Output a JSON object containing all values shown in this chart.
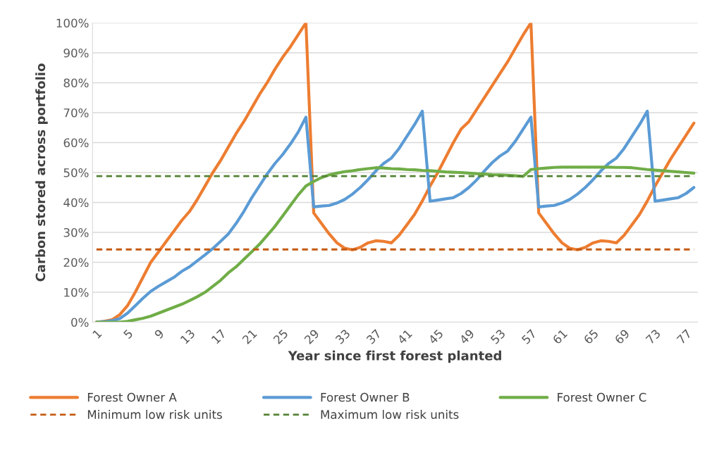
{
  "chart_data": {
    "type": "line",
    "xlabel": "Year since first forest planted",
    "ylabel": "Carbon stored across portfolio",
    "categories": [
      "1",
      null,
      null,
      null,
      "5",
      null,
      null,
      null,
      "9",
      null,
      null,
      null,
      "13",
      null,
      null,
      null,
      "17",
      null,
      null,
      null,
      "21",
      null,
      null,
      null,
      "25",
      null,
      null,
      null,
      "29",
      null,
      null,
      null,
      "33",
      null,
      null,
      null,
      "37",
      null,
      null,
      null,
      "41",
      null,
      null,
      null,
      "45",
      null,
      null,
      null,
      "49",
      null,
      null,
      null,
      "53",
      null,
      null,
      null,
      "57",
      null,
      null,
      null,
      "61",
      null,
      null,
      null,
      "65",
      null,
      null,
      null,
      "69",
      null,
      null,
      null,
      "73",
      null,
      null,
      null,
      "77",
      null
    ],
    "series": [
      {
        "name": "Forest Owner A",
        "color": "#ed7d31",
        "values": [
          0,
          0.3,
          0.8,
          2.5,
          5.5,
          10,
          15,
          20,
          23.5,
          27,
          30.5,
          34,
          37,
          41,
          45.5,
          50,
          54,
          58.5,
          63,
          67,
          71.5,
          76,
          80,
          84.5,
          88.5,
          92,
          96,
          100,
          36.5,
          33,
          29.5,
          26.5,
          24.7,
          24.2,
          25,
          26.5,
          27.2,
          27,
          26.5,
          29,
          32.5,
          36,
          40.5,
          45.5,
          50,
          55,
          60,
          64.5,
          67,
          71,
          75,
          79,
          83,
          87,
          91.5,
          96,
          100,
          36.5,
          33,
          29.5,
          26.5,
          24.7,
          24.2,
          25,
          26.5,
          27.2,
          27,
          26.5,
          29,
          32.5,
          36,
          40.5,
          45.5,
          50,
          54.5,
          58.5,
          62.5,
          66.5
        ]
      },
      {
        "name": "Forest Owner B",
        "color": "#5b9bd5",
        "values": [
          0,
          0.2,
          0.5,
          1.2,
          3,
          5.5,
          8,
          10.3,
          12,
          13.5,
          15,
          17,
          18.5,
          20.5,
          22.5,
          24.6,
          27,
          29.5,
          33,
          37,
          41.5,
          45.5,
          49.5,
          53,
          56,
          59.5,
          63.5,
          68.5,
          38.5,
          38.8,
          39,
          39.8,
          41,
          42.8,
          45,
          47.6,
          50.5,
          53,
          54.8,
          58,
          62,
          66,
          70.5,
          40.4,
          40.8,
          41.2,
          41.6,
          43,
          45,
          47.5,
          50.5,
          53.3,
          55.5,
          57.2,
          60.5,
          64.5,
          68.5,
          38.5,
          38.8,
          39,
          39.8,
          41,
          42.8,
          45,
          47.6,
          50.5,
          53,
          54.8,
          58,
          62,
          66,
          70.5,
          40.4,
          40.8,
          41.2,
          41.6,
          43,
          45
        ]
      },
      {
        "name": "Forest Owner C",
        "color": "#70ad47",
        "values": [
          0,
          0,
          0,
          0,
          0.3,
          0.8,
          1.3,
          2,
          3,
          4,
          5,
          6,
          7.2,
          8.5,
          10,
          12,
          14,
          16.5,
          18.5,
          21,
          23.5,
          26,
          29,
          32,
          35.5,
          39,
          42.5,
          45.5,
          47,
          48.3,
          49.2,
          49.8,
          50.3,
          50.6,
          51,
          51.3,
          51.6,
          51.5,
          51.3,
          51.2,
          51,
          50.9,
          50.7,
          50.6,
          50.4,
          50.2,
          50.1,
          50,
          49.8,
          49.6,
          49.5,
          49.3,
          49.2,
          49.1,
          48.9,
          48.7,
          51,
          51.3,
          51.5,
          51.7,
          51.8,
          51.8,
          51.8,
          51.8,
          51.8,
          51.8,
          51.8,
          51.7,
          51.7,
          51.6,
          51.3,
          51,
          50.8,
          50.6,
          50.4,
          50.2,
          50,
          49.8
        ]
      }
    ],
    "ref_lines": [
      {
        "axis": "y",
        "value": 24.3,
        "label": "Minimum low risk units",
        "color": "#c55a11",
        "line_style": "dashed"
      },
      {
        "axis": "y",
        "value": 48.8,
        "label": "Maximum low risk units",
        "color": "#548235",
        "line_style": "dashed"
      }
    ],
    "ylim": [
      0,
      100
    ],
    "yticks": [
      {
        "value": 0,
        "label": "0%"
      },
      {
        "value": 10,
        "label": "10%"
      },
      {
        "value": 20,
        "label": "20%"
      },
      {
        "value": 30,
        "label": "30%"
      },
      {
        "value": 40,
        "label": "40%"
      },
      {
        "value": 50,
        "label": "50%"
      },
      {
        "value": 60,
        "label": "60%"
      },
      {
        "value": 70,
        "label": "70%"
      },
      {
        "value": 80,
        "label": "80%"
      },
      {
        "value": 90,
        "label": "90%"
      },
      {
        "value": 100,
        "label": "100%"
      }
    ],
    "grid": "y",
    "legend": "bottom",
    "marker": "none",
    "line_style": "solid"
  }
}
